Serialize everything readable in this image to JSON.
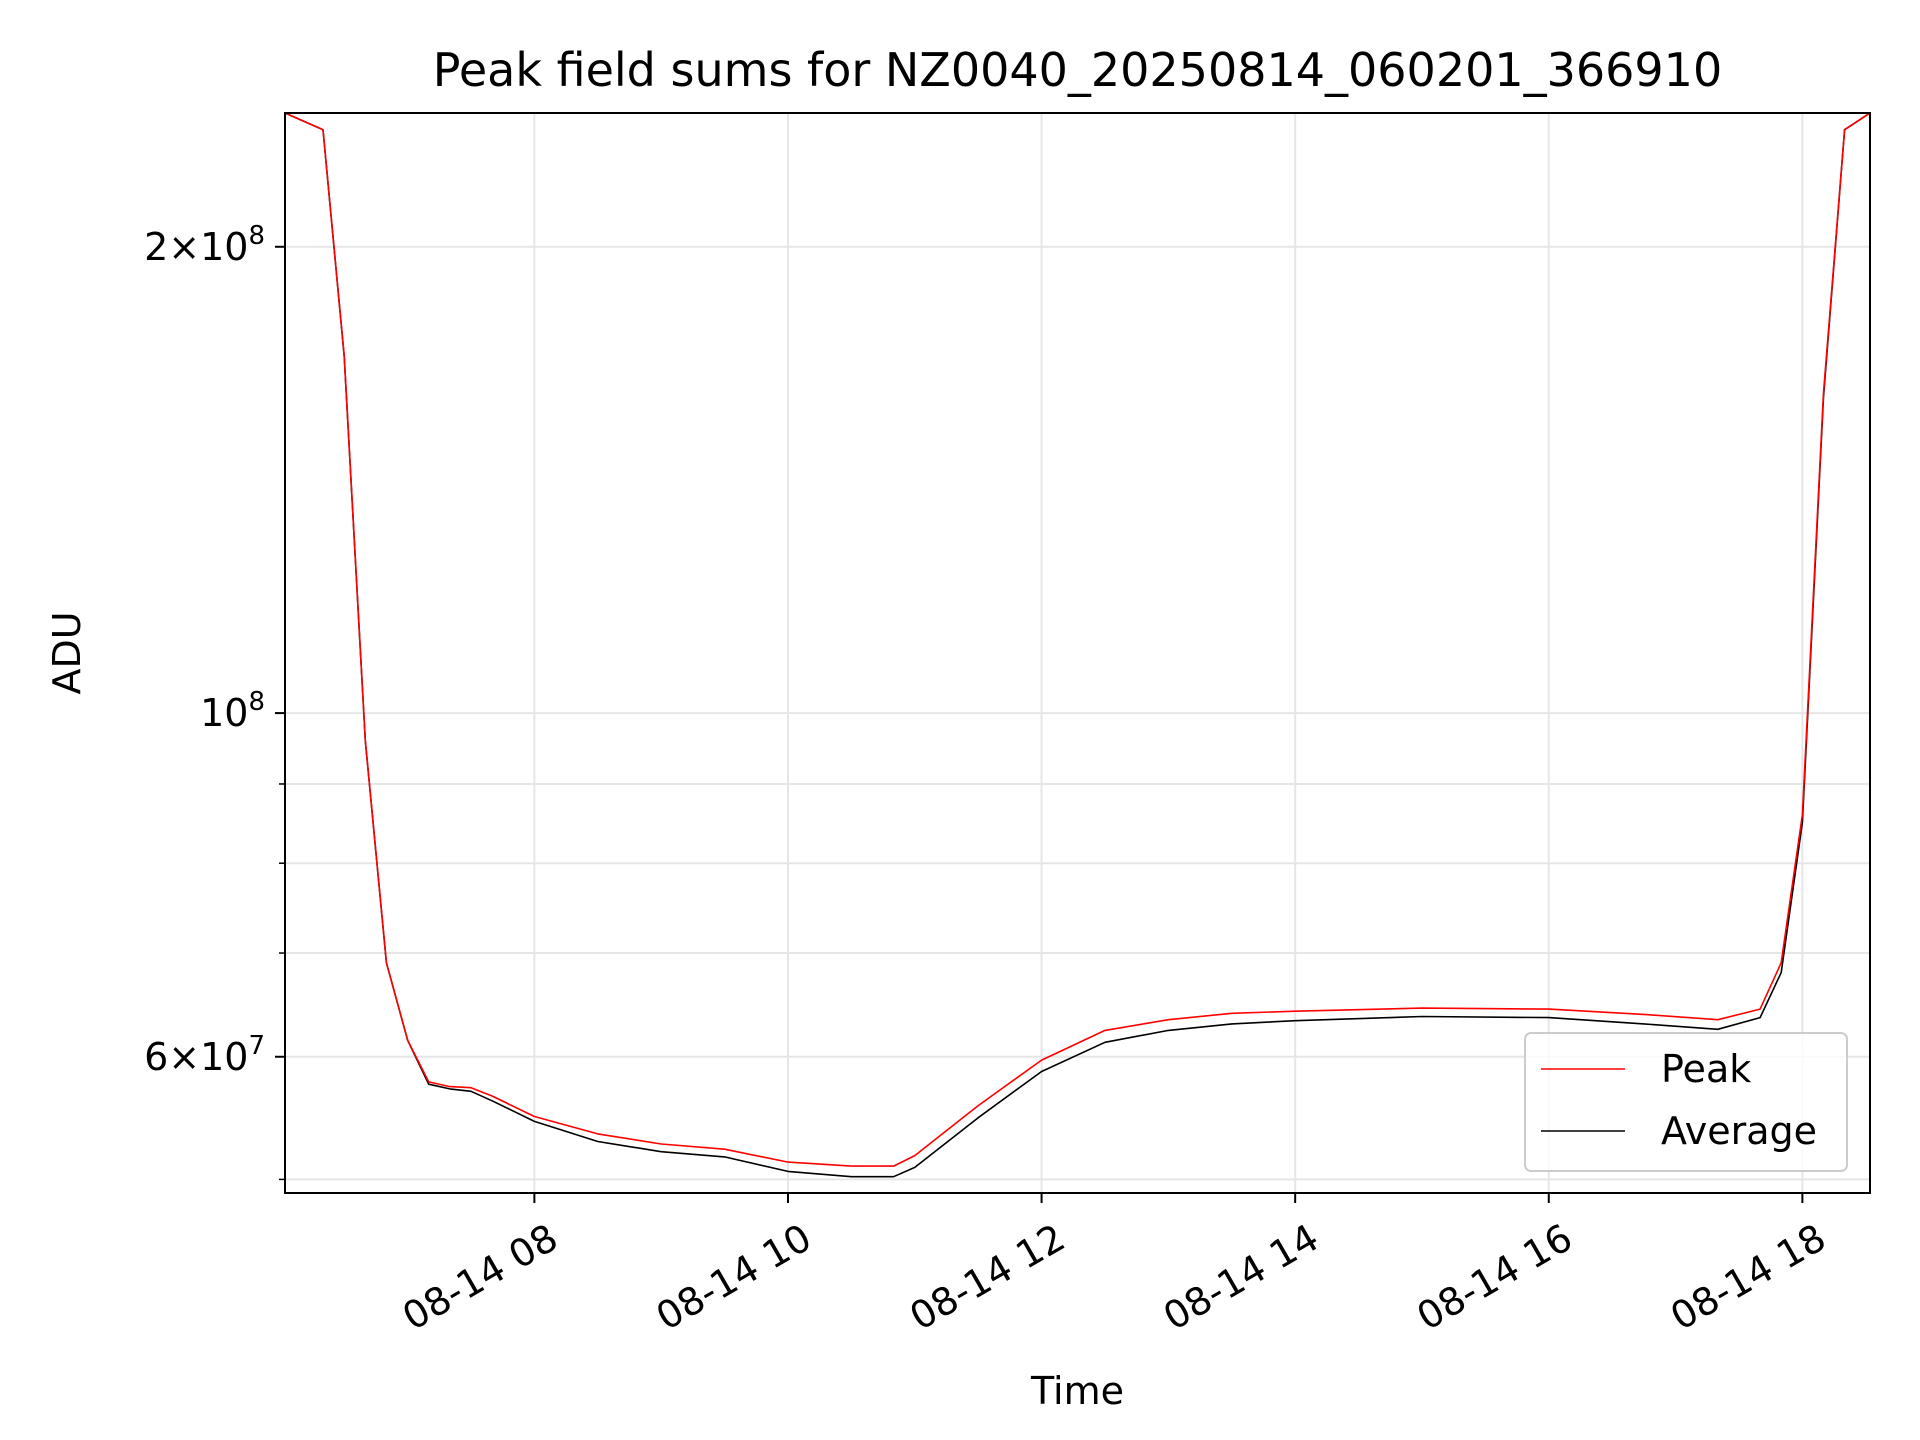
{
  "chart_data": {
    "type": "line",
    "title": "Peak field sums for NZ0040_20250814_060201_366910",
    "xlabel": "Time",
    "ylabel": "ADU",
    "yscale": "log",
    "ylim": [
      49000000,
      244000000
    ],
    "xlim": [
      "2025-08-14 06:02",
      "2025-08-14 18:32"
    ],
    "grid": true,
    "legend_position": "lower-right",
    "x_ticks": [
      "08-14 08",
      "08-14 10",
      "08-14 12",
      "08-14 14",
      "08-14 16",
      "08-14 18"
    ],
    "y_ticks": [
      {
        "base": "2",
        "exp": "8",
        "times": true
      },
      {
        "base": "",
        "exp": "8",
        "times": false
      },
      {
        "base": "6",
        "exp": "7",
        "times": true
      }
    ],
    "y_tick_values": [
      200000000,
      100000000,
      60000000
    ],
    "x": [
      "06:02",
      "06:20",
      "06:30",
      "06:40",
      "06:50",
      "07:00",
      "07:10",
      "07:20",
      "07:30",
      "07:40",
      "08:00",
      "08:30",
      "09:00",
      "09:30",
      "10:00",
      "10:30",
      "10:50",
      "11:00",
      "11:30",
      "12:00",
      "12:30",
      "13:00",
      "13:30",
      "14:00",
      "15:00",
      "16:00",
      "16:45",
      "17:20",
      "17:40",
      "17:50",
      "18:00",
      "18:10",
      "18:20",
      "18:32"
    ],
    "series": [
      {
        "name": "Average",
        "color": "#000000",
        "values": [
          244000000,
          238000000,
          170000000,
          96000000,
          69000000,
          61500000,
          57600000,
          57200000,
          57000000,
          56200000,
          54500000,
          52900000,
          52100000,
          51700000,
          50600000,
          50200000,
          50200000,
          50900000,
          54800000,
          58700000,
          61300000,
          62400000,
          63000000,
          63300000,
          63700000,
          63600000,
          63000000,
          62500000,
          63600000,
          68000000,
          85000000,
          160000000,
          238000000,
          244000000
        ]
      },
      {
        "name": "Peak",
        "color": "#ff0000",
        "values": [
          244000000,
          238000000,
          170000000,
          96000000,
          69000000,
          61500000,
          57800000,
          57400000,
          57300000,
          56600000,
          54900000,
          53500000,
          52700000,
          52300000,
          51300000,
          51000000,
          51000000,
          51800000,
          55800000,
          59700000,
          62400000,
          63400000,
          64000000,
          64200000,
          64500000,
          64400000,
          63900000,
          63400000,
          64400000,
          69000000,
          86000000,
          161000000,
          238000000,
          244000000
        ]
      }
    ]
  }
}
